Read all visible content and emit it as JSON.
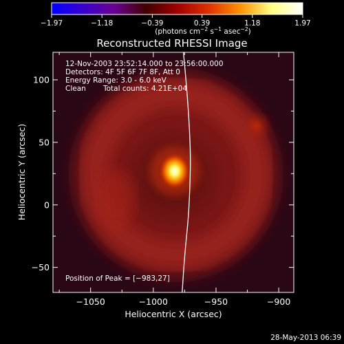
{
  "chart_data": {
    "type": "heatmap",
    "title": "Reconstructed RHESSI Image",
    "xlabel": "Heliocentric X (arcsec)",
    "ylabel": "Heliocentric Y (arcsec)",
    "xlim": [
      -1080,
      -888
    ],
    "ylim": [
      -70,
      122
    ],
    "x_ticks": [
      -1050,
      -1000,
      -950,
      -900
    ],
    "x_tick_labels": [
      "−1050",
      "−1000",
      "−950",
      "−900"
    ],
    "y_ticks": [
      -50,
      0,
      50,
      100
    ],
    "y_tick_labels": [
      "−50",
      "0",
      "50",
      "100"
    ],
    "colorbar": {
      "min": -1.97,
      "max": 1.97,
      "ticks": [
        -1.97,
        -1.18,
        -0.39,
        0.39,
        1.18,
        1.97
      ],
      "tick_labels": [
        "−1.97",
        "−1.18",
        "−0.39",
        "0.39",
        "1.18",
        "1.97"
      ],
      "units_prefix": "(photons cm",
      "units_exp1": "−2",
      "units_mid": " s",
      "units_exp2": "−1",
      "units_mid2": " asec",
      "units_exp3": "−2",
      "units_suffix": ")",
      "colors": [
        "#0000ff",
        "#3800d0",
        "#6a0090",
        "#400000",
        "#a00000",
        "#e03000",
        "#ff9000",
        "#ffff80",
        "#ffffff"
      ]
    },
    "annotations": {
      "time_range": "12-Nov-2003 23:52:14.000 to 23:56:00.000",
      "detectors": "Detectors: 4F 5F 6F 7F 8F, Att 0",
      "energy_range": "Energy Range: 3.0 - 6.0 keV",
      "method": "Clean",
      "total_counts": "Total counts: 4.21E+04",
      "peak_position": "Position of Peak = [−983,27]"
    },
    "peak": {
      "x": -983,
      "y": 27
    },
    "limb_arc": [
      [
        -976,
        122
      ],
      [
        -970,
        60
      ],
      [
        -971,
        0
      ],
      [
        -975,
        -40
      ],
      [
        -977,
        -70
      ]
    ],
    "emission_features": [
      {
        "kind": "peak-source",
        "x": -983,
        "y": 27
      },
      {
        "kind": "ring",
        "x": -982,
        "y": 24,
        "radius": 78
      },
      {
        "kind": "secondary-blob",
        "x": -918,
        "y": 63
      },
      {
        "kind": "lobe",
        "x": -1030,
        "y": 5
      }
    ]
  },
  "footer": {
    "date": "28-May-2013 06:39"
  },
  "colors": {
    "background": "#000000",
    "text": "#ffffff"
  }
}
